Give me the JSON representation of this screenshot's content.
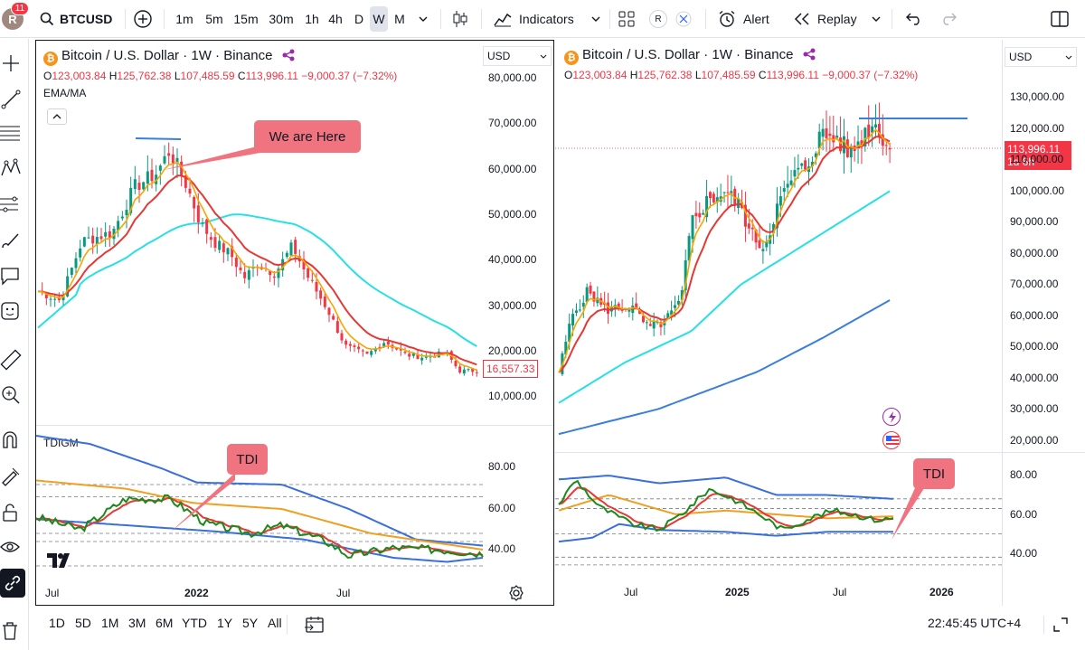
{
  "header": {
    "avatar_letter": "R",
    "notifications": "11",
    "symbol": "BTCUSD",
    "intervals": [
      "1m",
      "5m",
      "15m",
      "30m",
      "1h",
      "4h",
      "D",
      "W",
      "M"
    ],
    "active_interval": "W",
    "indicators_label": "Indicators",
    "alert_label": "Alert",
    "replay_label": "Replay",
    "r_badge": "R"
  },
  "left_chart": {
    "title": "Bitcoin / U.S. Dollar · 1W · Binance",
    "ohlc": {
      "o_label": "O",
      "o": "123,003.84",
      "h_label": "H",
      "h": "125,762.38",
      "l_label": "L",
      "l": "107,485.59",
      "c_label": "C",
      "c": "113,996.11",
      "change": "−9,000.37 (−7.32%)"
    },
    "ema_label": "EMA/MA",
    "currency": "USD",
    "price_axis": [
      "80,000.00",
      "70,000.00",
      "60,000.00",
      "50,000.00",
      "40,000.00",
      "30,000.00",
      "20,000.00",
      "10,000.00"
    ],
    "last_price": "16,557.33",
    "callout": "We are Here",
    "indicator_name": "TDIGM",
    "indicator_axis": [
      "80.00",
      "60.00",
      "40.00"
    ],
    "tdi_callout": "TDI",
    "time_axis": [
      "Jul",
      "2022",
      "Jul"
    ],
    "logo": "TV"
  },
  "right_chart": {
    "title": "Bitcoin / U.S. Dollar · 1W · Binance",
    "ohlc": {
      "o_label": "O",
      "o": "123,003.84",
      "h_label": "H",
      "h": "125,762.38",
      "l_label": "L",
      "l": "107,485.59",
      "c_label": "C",
      "c": "113,996.11",
      "change": "−9,000.37 (−7.32%)"
    },
    "currency": "USD",
    "price_axis": [
      "130,000.00",
      "120,000.00",
      "110,000.00",
      "100,000.00",
      "90,000.00",
      "80,000.00",
      "70,000.00",
      "60,000.00",
      "50,000.00",
      "40,000.00",
      "30,000.00",
      "20,000.00"
    ],
    "last_price": "113,996.11",
    "countdown": "1d 6h",
    "indicator_axis": [
      "80.00",
      "60.00",
      "40.00"
    ],
    "tdi_callout": "TDI",
    "time_axis": [
      "Jul",
      "2025",
      "Jul",
      "2026"
    ]
  },
  "footer": {
    "ranges": [
      "1D",
      "5D",
      "1M",
      "3M",
      "6M",
      "YTD",
      "1Y",
      "5Y",
      "All"
    ],
    "clock": "22:45:45 UTC+4"
  },
  "colors": {
    "up": "#089981",
    "down": "#f23645",
    "ema_fast": "#f7a600",
    "ema_slow": "#e53935",
    "ma_cyan": "#26e0e6",
    "ma_blue": "#3a7fd9",
    "tdi_green": "#1b8a1b",
    "tdi_red": "#e53935",
    "tdi_orange": "#f0a020",
    "tdi_band": "#3a6fd9",
    "callout": "#f07480"
  }
}
